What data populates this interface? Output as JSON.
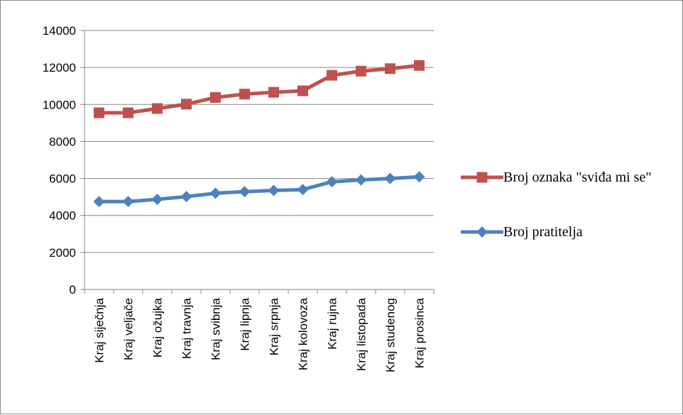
{
  "chart_data": {
    "type": "line",
    "categories": [
      "Kraj siječnja",
      "Kraj veljače",
      "Kraj ožujka",
      "Kraj travnja",
      "Kraj svibnja",
      "Kraj lipnja",
      "Kraj srpnja",
      "Kraj kolovoza",
      "Kraj rujna",
      "Kraj listopada",
      "Kraj studenog",
      "Kraj prosinca"
    ],
    "series": [
      {
        "name": "Broj oznaka \"sviđa mi se\"",
        "color": "#c0504d",
        "marker": "square",
        "values": [
          9550,
          9550,
          9780,
          10020,
          10380,
          10560,
          10660,
          10740,
          11580,
          11800,
          11940,
          12110
        ]
      },
      {
        "name": "Broj pratitelja",
        "color": "#4f81bd",
        "marker": "diamond",
        "values": [
          4750,
          4750,
          4870,
          5020,
          5200,
          5290,
          5350,
          5400,
          5820,
          5920,
          6000,
          6090
        ]
      }
    ],
    "yticks": [
      0,
      2000,
      4000,
      6000,
      8000,
      10000,
      12000,
      14000
    ],
    "ylim": [
      0,
      14000
    ],
    "grid": true,
    "legend_position": "right",
    "title": "",
    "xlabel": "",
    "ylabel": ""
  }
}
